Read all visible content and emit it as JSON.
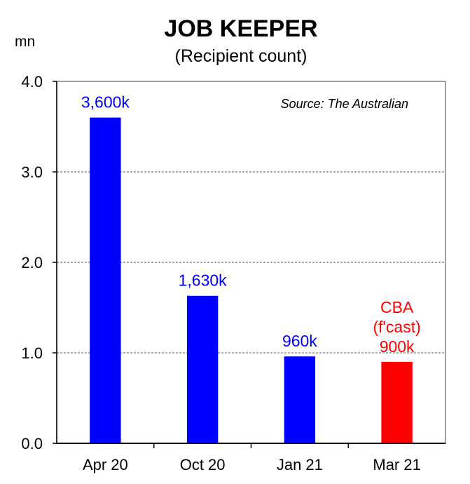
{
  "chart_data": {
    "type": "bar",
    "title": "JOB KEEPER",
    "subtitle": "(Recipient count)",
    "ylabel": "mn",
    "xlabel": "",
    "annotation": "Source: The Australian",
    "ylim": [
      0,
      4
    ],
    "yticks": [
      "0.0",
      "1.0",
      "2.0",
      "3.0",
      "4.0"
    ],
    "grid": true,
    "categories": [
      "Apr 20",
      "Oct 20",
      "Jan 21",
      "Mar 21"
    ],
    "values": [
      3.6,
      1.63,
      0.96,
      0.9
    ],
    "data_labels": [
      [
        "3,600k"
      ],
      [
        "1,630k"
      ],
      [
        "960k"
      ],
      [
        "CBA",
        "(f'cast)",
        "900k"
      ]
    ],
    "colors": [
      "#0000ff",
      "#0000ff",
      "#0000ff",
      "#ff0000"
    ]
  }
}
